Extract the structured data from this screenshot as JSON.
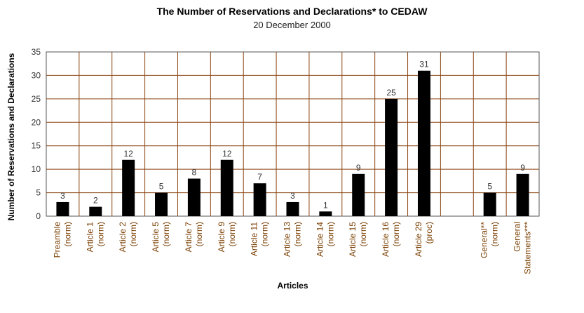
{
  "chart_data": {
    "type": "bar",
    "title": "The Number of Reservations and Declarations* to CEDAW",
    "subtitle": "20 December 2000",
    "xlabel": "Articles",
    "ylabel": "Number of Reservations and Declarations",
    "ylim": [
      0,
      35
    ],
    "yticks": [
      0,
      5,
      10,
      15,
      20,
      25,
      30,
      35
    ],
    "grid": true,
    "categories": [
      {
        "line1": "Preamble",
        "line2": "(norm)"
      },
      {
        "line1": "Article 1",
        "line2": "(norm)"
      },
      {
        "line1": "Article 2",
        "line2": "(norm)"
      },
      {
        "line1": "Article 5",
        "line2": "(norm)"
      },
      {
        "line1": "Article 7",
        "line2": "(norm)"
      },
      {
        "line1": "Article 9",
        "line2": "(norm)"
      },
      {
        "line1": "Article 11",
        "line2": "(norm)"
      },
      {
        "line1": "Article 13",
        "line2": "(norm)"
      },
      {
        "line1": "Article 14",
        "line2": "(norm)"
      },
      {
        "line1": "Article 15",
        "line2": "(norm)"
      },
      {
        "line1": "Article 16",
        "line2": "(norm)"
      },
      {
        "line1": "Article 29",
        "line2": "(proc)"
      },
      {
        "line1": "",
        "line2": ""
      },
      {
        "line1": "General**",
        "line2": "(norm)"
      },
      {
        "line1": "General",
        "line2": "Statements***"
      }
    ],
    "values": [
      3,
      2,
      12,
      5,
      8,
      12,
      7,
      3,
      1,
      9,
      25,
      31,
      null,
      5,
      9
    ],
    "bar_color": "#000000",
    "grid_color": "#8b4513",
    "label_color": "#7a3e00"
  }
}
